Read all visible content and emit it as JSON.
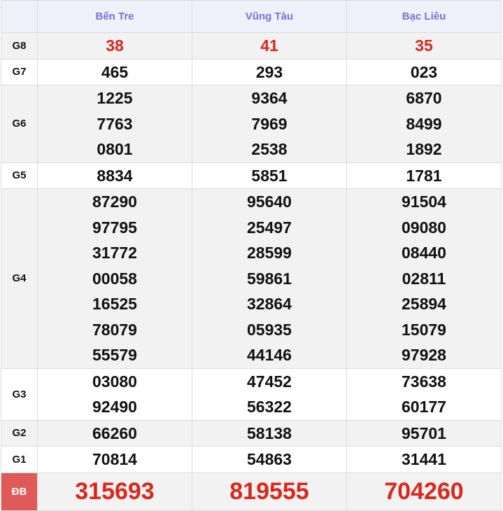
{
  "columns": [
    "Bến Tre",
    "Vũng Tàu",
    "Bạc Liêu"
  ],
  "rows": [
    {
      "label": "G8",
      "values": [
        [
          "38"
        ],
        [
          "41"
        ],
        [
          "35"
        ]
      ]
    },
    {
      "label": "G7",
      "values": [
        [
          "465"
        ],
        [
          "293"
        ],
        [
          "023"
        ]
      ]
    },
    {
      "label": "G6",
      "values": [
        [
          "1225",
          "7763",
          "0801"
        ],
        [
          "9364",
          "7969",
          "2538"
        ],
        [
          "6870",
          "8499",
          "1892"
        ]
      ]
    },
    {
      "label": "G5",
      "values": [
        [
          "8834"
        ],
        [
          "5851"
        ],
        [
          "1781"
        ]
      ]
    },
    {
      "label": "G4",
      "values": [
        [
          "87290",
          "97795",
          "31772",
          "00058",
          "16525",
          "78079",
          "55579"
        ],
        [
          "95640",
          "25497",
          "28599",
          "59861",
          "32864",
          "05935",
          "44146"
        ],
        [
          "91504",
          "09080",
          "08440",
          "02811",
          "25894",
          "15079",
          "97928"
        ]
      ]
    },
    {
      "label": "G3",
      "values": [
        [
          "03080",
          "92490"
        ],
        [
          "47452",
          "56322"
        ],
        [
          "73638",
          "60177"
        ]
      ]
    },
    {
      "label": "G2",
      "values": [
        [
          "66260"
        ],
        [
          "58138"
        ],
        [
          "95701"
        ]
      ]
    },
    {
      "label": "G1",
      "values": [
        [
          "70814"
        ],
        [
          "54863"
        ],
        [
          "31441"
        ]
      ]
    },
    {
      "label": "ĐB",
      "values": [
        [
          "315693"
        ],
        [
          "819555"
        ],
        [
          "704260"
        ]
      ]
    }
  ],
  "colors": {
    "header_text": "#7a6fd8",
    "prize_red": "#d9271e",
    "db_label_bg": "#e05a5a"
  }
}
